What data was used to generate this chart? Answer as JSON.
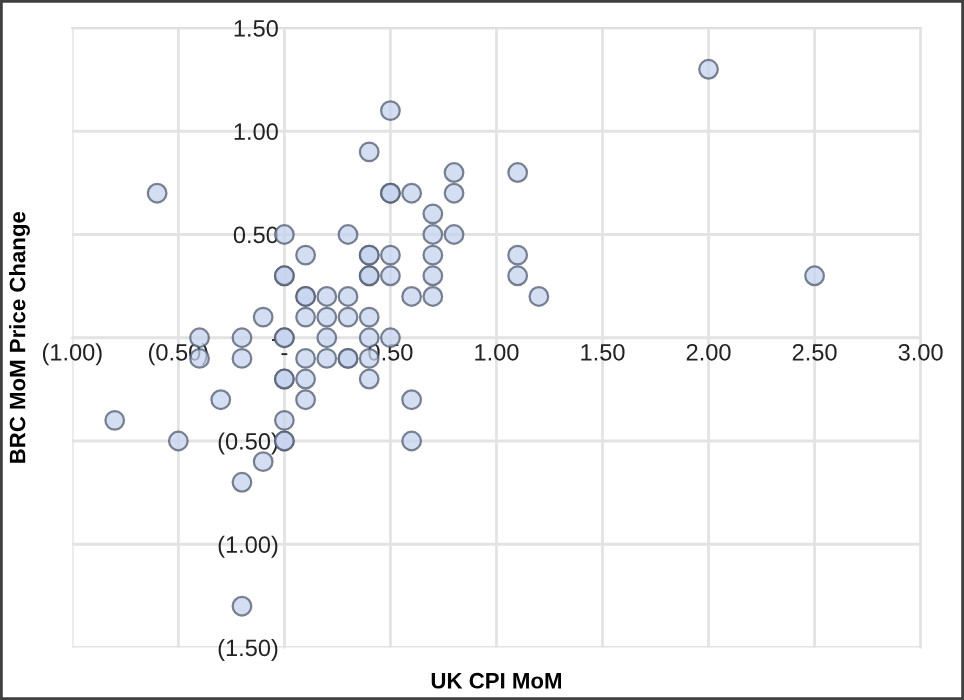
{
  "chart_data": {
    "type": "scatter",
    "xlabel": "UK CPI MoM",
    "ylabel": "BRC MoM Price Change",
    "series": [
      {
        "color": "#c5d3ee",
        "x": [
          -0.6,
          0.5,
          0.4,
          0.5,
          0.5,
          0.6,
          0.8,
          0.8,
          0.7,
          0,
          0.1,
          0.3,
          0.7,
          0.8,
          0.4,
          0.4,
          0.5,
          0.7,
          0,
          0,
          0.4,
          0.4,
          0.5,
          0.7,
          0.1,
          0.1,
          0.2,
          0.3,
          0.6,
          0.7,
          -0.1,
          0.1,
          0.2,
          0.3,
          0.4,
          -0.4,
          -0.2,
          0,
          0,
          0.2,
          0.4,
          0.5,
          1.1,
          1.1,
          1.1,
          1.2,
          2.0,
          2.5,
          -0.4,
          -0.2,
          0.1,
          0.2,
          0.3,
          0.3,
          0.4,
          0,
          0,
          0.1,
          0.4,
          -0.3,
          0.1,
          0.6,
          -0.8,
          0,
          -0.5,
          0,
          0,
          0.6,
          -0.1,
          -0.2,
          -0.2
        ],
        "values": [
          0.7,
          1.1,
          0.9,
          0.7,
          0.7,
          0.7,
          0.8,
          0.7,
          0.6,
          0.5,
          0.4,
          0.5,
          0.5,
          0.5,
          0.4,
          0.4,
          0.4,
          0.4,
          0.3,
          0.3,
          0.3,
          0.3,
          0.3,
          0.3,
          0.2,
          0.2,
          0.2,
          0.2,
          0.2,
          0.2,
          0.1,
          0.1,
          0.1,
          0.1,
          0.1,
          0,
          0,
          0,
          0,
          0,
          0,
          0,
          0.8,
          0.4,
          0.3,
          0.2,
          1.3,
          0.3,
          -0.1,
          -0.1,
          -0.1,
          -0.1,
          -0.1,
          -0.1,
          -0.1,
          -0.2,
          -0.2,
          -0.2,
          -0.2,
          -0.3,
          -0.3,
          -0.3,
          -0.4,
          -0.4,
          -0.5,
          -0.5,
          -0.5,
          -0.5,
          -0.6,
          -0.7,
          -1.3
        ]
      }
    ],
    "marker": "circle",
    "grid": true,
    "xlim": [
      -1,
      3
    ],
    "ylim": [
      -1.5,
      1.5
    ],
    "xticks": [
      {
        "value": -1,
        "label": "(1.00)"
      },
      {
        "value": -0.5,
        "label": "(0.50)"
      },
      {
        "value": 0,
        "label": "-"
      },
      {
        "value": 0.5,
        "label": "0.50"
      },
      {
        "value": 1,
        "label": "1.00"
      },
      {
        "value": 1.5,
        "label": "1.50"
      },
      {
        "value": 2,
        "label": "2.00"
      },
      {
        "value": 2.5,
        "label": "2.50"
      },
      {
        "value": 3,
        "label": "3.00"
      }
    ],
    "yticks": [
      {
        "value": -1.5,
        "label": "(1.50)"
      },
      {
        "value": -1,
        "label": "(1.00)"
      },
      {
        "value": -0.5,
        "label": "(0.50)"
      },
      {
        "value": 0,
        "label": "-"
      },
      {
        "value": 0.5,
        "label": "0.50"
      },
      {
        "value": 1,
        "label": "1.00"
      },
      {
        "value": 1.5,
        "label": "1.50"
      }
    ]
  }
}
